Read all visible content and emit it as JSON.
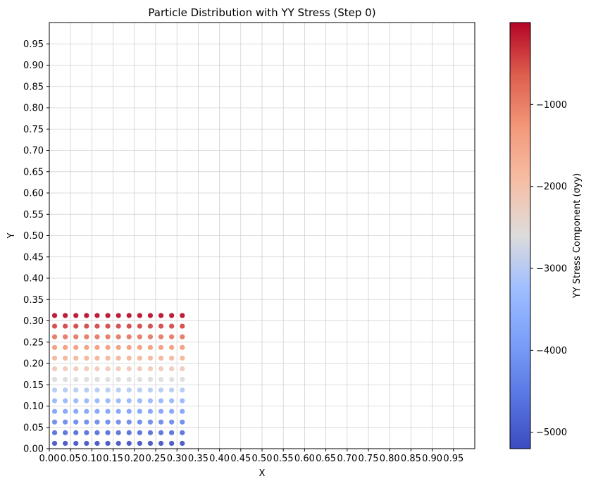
{
  "chart_data": {
    "type": "scatter",
    "title": "Particle Distribution with YY Stress (Step 0)",
    "xlabel": "X",
    "ylabel": "Y",
    "xlim": [
      0,
      1
    ],
    "ylim": [
      0,
      1
    ],
    "grid": true,
    "x_ticks": [
      "0.00",
      "0.05",
      "0.10",
      "0.15",
      "0.20",
      "0.25",
      "0.30",
      "0.35",
      "0.40",
      "0.45",
      "0.50",
      "0.55",
      "0.60",
      "0.65",
      "0.70",
      "0.75",
      "0.80",
      "0.85",
      "0.90",
      "0.95"
    ],
    "y_ticks": [
      "0.00",
      "0.05",
      "0.10",
      "0.15",
      "0.20",
      "0.25",
      "0.30",
      "0.35",
      "0.40",
      "0.45",
      "0.50",
      "0.55",
      "0.60",
      "0.65",
      "0.70",
      "0.75",
      "0.80",
      "0.85",
      "0.90",
      "0.95"
    ],
    "particles": {
      "x": [
        0.0125,
        0.0375,
        0.0625,
        0.0875,
        0.1125,
        0.1375,
        0.1625,
        0.1875,
        0.2125,
        0.2375,
        0.2625,
        0.2875,
        0.3125
      ],
      "y": [
        0.0125,
        0.0375,
        0.0625,
        0.0875,
        0.1125,
        0.1375,
        0.1625,
        0.1875,
        0.2125,
        0.2375,
        0.2625,
        0.2875,
        0.3125
      ],
      "stress_by_row": [
        -5160,
        -4740,
        -4310,
        -3880,
        -3450,
        -3020,
        -2580,
        -2150,
        -1720,
        -1290,
        -860,
        -430,
        0
      ]
    },
    "colorbar": {
      "label": "YY Stress Component (σyy)",
      "colormap": "coolwarm",
      "min": -5200,
      "max": 0,
      "ticks": [
        -1000,
        -2000,
        -3000,
        -4000,
        -5000
      ],
      "tick_labels": [
        "−1000",
        "−2000",
        "−3000",
        "−4000",
        "−5000"
      ]
    }
  }
}
